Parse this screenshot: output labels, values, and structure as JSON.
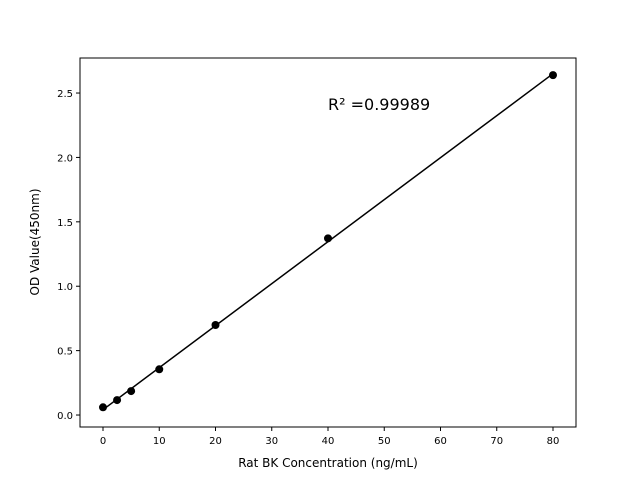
{
  "chart_data": {
    "type": "scatter",
    "title": "",
    "xlabel": "Rat BK Concentration (ng/mL)",
    "ylabel": "OD Value(450nm)",
    "xlim": [
      -4.09,
      84.09
    ],
    "ylim": [
      -0.093,
      2.772
    ],
    "xticks": [
      0,
      10,
      20,
      30,
      40,
      50,
      60,
      70,
      80
    ],
    "yticks": [
      "0.0",
      "0.5",
      "1.0",
      "1.5",
      "2.0",
      "2.5"
    ],
    "grid": false,
    "series": [
      {
        "x": [
          0,
          2.5,
          5,
          10,
          20,
          40,
          80
        ],
        "y": [
          0.06,
          0.116,
          0.186,
          0.355,
          0.699,
          1.372,
          2.639
        ],
        "marker": "circle",
        "color": "#000000",
        "fit": "linear"
      }
    ],
    "annotation": {
      "text": "R² =0.99989",
      "x": 40,
      "y": 2.37
    }
  }
}
